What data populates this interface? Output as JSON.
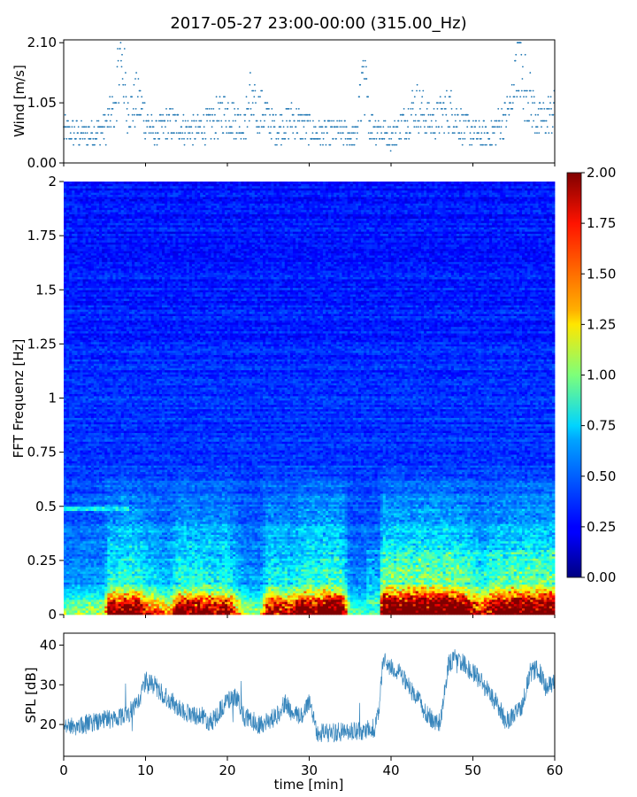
{
  "title": "2017-05-27 23:00-00:00 (315.00_Hz)",
  "chart_data": [
    {
      "type": "scatter",
      "name": "wind-panel",
      "ylabel": "Wind [m/s]",
      "xlim": [
        0,
        60
      ],
      "ylim": [
        0,
        2.15
      ],
      "yticks": [
        "0.00",
        "1.05",
        "2.10"
      ],
      "ytick_values": [
        0,
        1.05,
        2.1
      ],
      "marker_color": "#1f77b4",
      "quantization_step": 0.105,
      "profile": [
        {
          "t": 0,
          "v": 0.55
        },
        {
          "t": 3,
          "v": 0.5
        },
        {
          "t": 5,
          "v": 0.6
        },
        {
          "t": 6.5,
          "v": 1.0
        },
        {
          "t": 7,
          "v": 1.5
        },
        {
          "t": 8,
          "v": 0.9
        },
        {
          "t": 9,
          "v": 1.1
        },
        {
          "t": 11,
          "v": 0.5
        },
        {
          "t": 13,
          "v": 0.7
        },
        {
          "t": 16,
          "v": 0.55
        },
        {
          "t": 18,
          "v": 0.7
        },
        {
          "t": 20,
          "v": 0.9
        },
        {
          "t": 22,
          "v": 0.6
        },
        {
          "t": 24,
          "v": 0.95
        },
        {
          "t": 26,
          "v": 0.6
        },
        {
          "t": 28,
          "v": 0.75
        },
        {
          "t": 31,
          "v": 0.5
        },
        {
          "t": 34,
          "v": 0.55
        },
        {
          "t": 36,
          "v": 0.45
        },
        {
          "t": 36.5,
          "v": 1.2
        },
        {
          "t": 37.5,
          "v": 0.7
        },
        {
          "t": 40,
          "v": 0.45
        },
        {
          "t": 42,
          "v": 0.8
        },
        {
          "t": 43,
          "v": 1.0
        },
        {
          "t": 45,
          "v": 0.7
        },
        {
          "t": 47,
          "v": 0.95
        },
        {
          "t": 49,
          "v": 0.6
        },
        {
          "t": 52,
          "v": 0.45
        },
        {
          "t": 55,
          "v": 1.0
        },
        {
          "t": 55.5,
          "v": 1.6
        },
        {
          "t": 56.5,
          "v": 1.3
        },
        {
          "t": 58,
          "v": 0.7
        },
        {
          "t": 60,
          "v": 0.9
        }
      ],
      "peaks": [
        {
          "t": 6.9,
          "v": 2.1
        },
        {
          "t": 36.5,
          "v": 1.85
        },
        {
          "t": 55.5,
          "v": 2.1
        },
        {
          "t": 22.8,
          "v": 1.45
        }
      ]
    },
    {
      "type": "heatmap",
      "name": "spectrogram-panel",
      "ylabel": "FFT Frequenz [Hz]",
      "xlim": [
        0,
        60
      ],
      "ylim": [
        0,
        2
      ],
      "yticks": [
        "0",
        "0.25",
        "0.5",
        "0.75",
        "1",
        "1.25",
        "1.5",
        "1.75",
        "2"
      ],
      "ytick_values": [
        0,
        0.25,
        0.5,
        0.75,
        1,
        1.25,
        1.5,
        1.75,
        2
      ],
      "colormap": "jet",
      "colorbar": {
        "vmin": 0,
        "vmax": 2,
        "ticks": [
          "0.00",
          "0.25",
          "0.50",
          "0.75",
          "1.00",
          "1.25",
          "1.50",
          "1.75",
          "2.00"
        ],
        "tick_values": [
          0,
          0.25,
          0.5,
          0.75,
          1,
          1.25,
          1.5,
          1.75,
          2
        ]
      },
      "low_freq_intensity_by_minute": [
        {
          "t": 0,
          "v": 0.5
        },
        {
          "t": 5,
          "v": 0.6
        },
        {
          "t": 5.5,
          "v": 1.5
        },
        {
          "t": 9,
          "v": 1.6
        },
        {
          "t": 10,
          "v": 1.2
        },
        {
          "t": 13,
          "v": 0.8
        },
        {
          "t": 14,
          "v": 1.5
        },
        {
          "t": 20,
          "v": 1.4
        },
        {
          "t": 22,
          "v": 0.6
        },
        {
          "t": 24,
          "v": 0.5
        },
        {
          "t": 25,
          "v": 1.4
        },
        {
          "t": 28,
          "v": 1.2
        },
        {
          "t": 29,
          "v": 1.6
        },
        {
          "t": 34,
          "v": 1.7
        },
        {
          "t": 35,
          "v": 0.4
        },
        {
          "t": 38.5,
          "v": 0.4
        },
        {
          "t": 39,
          "v": 1.8
        },
        {
          "t": 47,
          "v": 1.8
        },
        {
          "t": 49,
          "v": 1.6
        },
        {
          "t": 51,
          "v": 1.0
        },
        {
          "t": 53,
          "v": 1.6
        },
        {
          "t": 60,
          "v": 1.7
        }
      ],
      "bright_band": {
        "t_start": 0,
        "t_end": 8,
        "freq": 0.49,
        "v": 0.75
      }
    },
    {
      "type": "line",
      "name": "spl-panel",
      "ylabel": "SPL [dB]",
      "xlabel": "time [min]",
      "xlim": [
        0,
        60
      ],
      "ylim": [
        12,
        43
      ],
      "yticks": [
        "20",
        "30",
        "40"
      ],
      "ytick_values": [
        20,
        30,
        40
      ],
      "xticks": [
        "0",
        "10",
        "20",
        "30",
        "40",
        "50",
        "60"
      ],
      "xtick_values": [
        0,
        10,
        20,
        30,
        40,
        50,
        60
      ],
      "line_color": "#1f77b4",
      "envelope_center": [
        {
          "t": 0,
          "v": 20
        },
        {
          "t": 2,
          "v": 19.5
        },
        {
          "t": 4,
          "v": 21
        },
        {
          "t": 6,
          "v": 21.5
        },
        {
          "t": 8,
          "v": 23
        },
        {
          "t": 9,
          "v": 25
        },
        {
          "t": 10,
          "v": 31
        },
        {
          "t": 11,
          "v": 30
        },
        {
          "t": 13,
          "v": 26
        },
        {
          "t": 15,
          "v": 23
        },
        {
          "t": 17,
          "v": 22
        },
        {
          "t": 18,
          "v": 20.5
        },
        {
          "t": 20,
          "v": 26
        },
        {
          "t": 21,
          "v": 27
        },
        {
          "t": 22,
          "v": 22
        },
        {
          "t": 24,
          "v": 20
        },
        {
          "t": 26,
          "v": 22
        },
        {
          "t": 27,
          "v": 25.5
        },
        {
          "t": 28,
          "v": 22.5
        },
        {
          "t": 29,
          "v": 22
        },
        {
          "t": 30,
          "v": 26
        },
        {
          "t": 31,
          "v": 18
        },
        {
          "t": 35,
          "v": 18
        },
        {
          "t": 38,
          "v": 19
        },
        {
          "t": 38.5,
          "v": 23
        },
        {
          "t": 39,
          "v": 36
        },
        {
          "t": 41,
          "v": 33
        },
        {
          "t": 42,
          "v": 30
        },
        {
          "t": 43,
          "v": 27
        },
        {
          "t": 44,
          "v": 24
        },
        {
          "t": 45,
          "v": 21
        },
        {
          "t": 46,
          "v": 20.5
        },
        {
          "t": 47,
          "v": 35
        },
        {
          "t": 48,
          "v": 37
        },
        {
          "t": 49,
          "v": 35
        },
        {
          "t": 51,
          "v": 31
        },
        {
          "t": 53,
          "v": 25
        },
        {
          "t": 54,
          "v": 21
        },
        {
          "t": 55,
          "v": 22
        },
        {
          "t": 56,
          "v": 25
        },
        {
          "t": 57,
          "v": 33
        },
        {
          "t": 58,
          "v": 34
        },
        {
          "t": 59,
          "v": 29
        },
        {
          "t": 60,
          "v": 31
        }
      ],
      "envelope_halfwidth": 2.5
    }
  ]
}
